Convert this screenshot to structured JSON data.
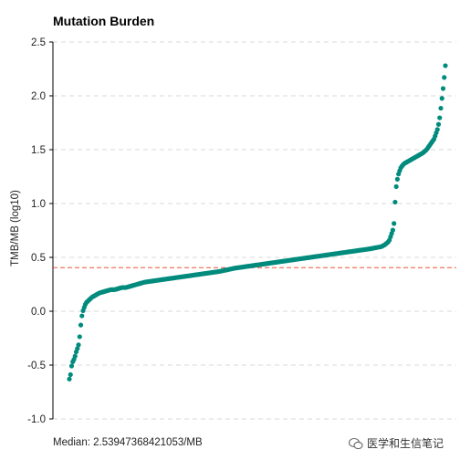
{
  "chart_data": {
    "type": "scatter",
    "title": "Mutation Burden",
    "xlabel": "",
    "ylabel": "TMB/MB (log10)",
    "ylim": [
      -1.0,
      2.5
    ],
    "yticks": [
      "2.5",
      "2.0",
      "1.5",
      "1.0",
      "0.5",
      "0.0",
      "-0.5",
      "-1.0"
    ],
    "ytick_values": [
      2.5,
      2.0,
      1.5,
      1.0,
      0.5,
      0.0,
      -0.5,
      -1.0
    ],
    "grid": "horizontal dashed",
    "median_line": 0.405,
    "point_color": "#008B7D",
    "median_line_color": "#E8553A",
    "caption": "Median: 2.53947368421053/MB",
    "series": [
      {
        "x": [
          0.0,
          0.003,
          0.006,
          0.009,
          0.012,
          0.015,
          0.018,
          0.021,
          0.024,
          0.027,
          0.03,
          0.033,
          0.036,
          0.039,
          0.042,
          0.045,
          0.048,
          0.051,
          0.054,
          0.057,
          0.06,
          0.065,
          0.07,
          0.075,
          0.08,
          0.085,
          0.09,
          0.095,
          0.1,
          0.11,
          0.12,
          0.13,
          0.14,
          0.15,
          0.16,
          0.17,
          0.18,
          0.19,
          0.2,
          0.22,
          0.24,
          0.26,
          0.28,
          0.3,
          0.32,
          0.34,
          0.36,
          0.38,
          0.4,
          0.42,
          0.44,
          0.46,
          0.48,
          0.5,
          0.52,
          0.54,
          0.56,
          0.58,
          0.6,
          0.62,
          0.64,
          0.66,
          0.68,
          0.7,
          0.72,
          0.74,
          0.76,
          0.78,
          0.8,
          0.815,
          0.83,
          0.84,
          0.85,
          0.855,
          0.86,
          0.863,
          0.866,
          0.869,
          0.872,
          0.875,
          0.878,
          0.881,
          0.885,
          0.89,
          0.9,
          0.91,
          0.92,
          0.93,
          0.94,
          0.95,
          0.96,
          0.97,
          0.975,
          0.98,
          0.985,
          0.99,
          0.995,
          1.0
        ],
        "y": [
          -0.63,
          -0.59,
          -0.51,
          -0.47,
          -0.45,
          -0.42,
          -0.38,
          -0.35,
          -0.32,
          -0.25,
          -0.14,
          -0.05,
          0.0,
          0.03,
          0.06,
          0.08,
          0.09,
          0.1,
          0.11,
          0.12,
          0.13,
          0.14,
          0.15,
          0.16,
          0.17,
          0.175,
          0.18,
          0.185,
          0.19,
          0.2,
          0.2,
          0.21,
          0.22,
          0.22,
          0.23,
          0.24,
          0.25,
          0.26,
          0.27,
          0.28,
          0.29,
          0.3,
          0.31,
          0.32,
          0.33,
          0.34,
          0.35,
          0.36,
          0.37,
          0.385,
          0.4,
          0.41,
          0.42,
          0.43,
          0.44,
          0.45,
          0.46,
          0.47,
          0.48,
          0.49,
          0.5,
          0.51,
          0.52,
          0.53,
          0.54,
          0.55,
          0.56,
          0.57,
          0.58,
          0.59,
          0.6,
          0.62,
          0.65,
          0.7,
          0.75,
          0.8,
          1.0,
          1.15,
          1.22,
          1.27,
          1.3,
          1.33,
          1.35,
          1.37,
          1.39,
          1.41,
          1.43,
          1.45,
          1.47,
          1.5,
          1.55,
          1.6,
          1.65,
          1.7,
          1.8,
          1.95,
          2.1,
          2.28
        ]
      }
    ]
  },
  "watermark": {
    "text": "医学和生信笔记",
    "icon": "wechat-icon"
  }
}
